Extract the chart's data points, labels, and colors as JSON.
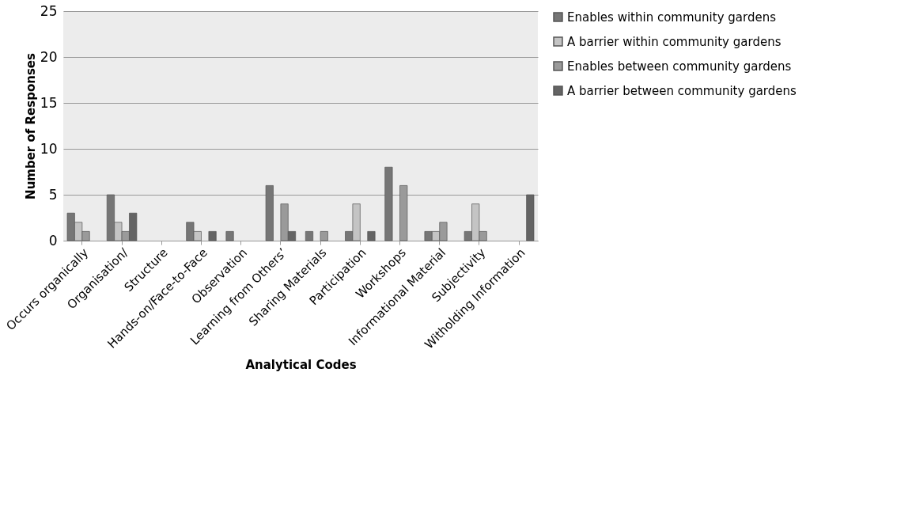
{
  "chart_data": {
    "type": "bar",
    "xlabel": "Analytical Codes",
    "ylabel": "Number of Responses",
    "categories": [
      "Occurs organically",
      "Organisation/",
      "Structure",
      "Hands-on/Face-to-Face",
      "Observation",
      "Learning from Others’",
      "Sharing Materials",
      "Participation",
      "Workshops",
      "Informational Material",
      "Subjectivity",
      "Witholding Information"
    ],
    "series": [
      {
        "name": "Enables within community gardens",
        "color": "#767676",
        "values": [
          3,
          5,
          0,
          2,
          1,
          6,
          1,
          1,
          8,
          1,
          1,
          0
        ]
      },
      {
        "name": "A barrier within community gardens",
        "color": "#c4c4c4",
        "values": [
          2,
          2,
          0,
          1,
          0,
          0,
          0,
          4,
          0,
          1,
          4,
          0
        ]
      },
      {
        "name": "Enables between community gardens",
        "color": "#9a9a9a",
        "values": [
          1,
          1,
          0,
          0,
          0,
          4,
          1,
          0,
          6,
          2,
          1,
          0
        ]
      },
      {
        "name": "A barrier between community gardens",
        "color": "#646464",
        "values": [
          0,
          3,
          0,
          1,
          0,
          1,
          0,
          1,
          0,
          0,
          0,
          5
        ]
      }
    ],
    "ylim": [
      0,
      25
    ],
    "yticks": [
      0,
      5,
      10,
      15,
      20,
      25
    ],
    "grid": "y",
    "legend": "right"
  }
}
